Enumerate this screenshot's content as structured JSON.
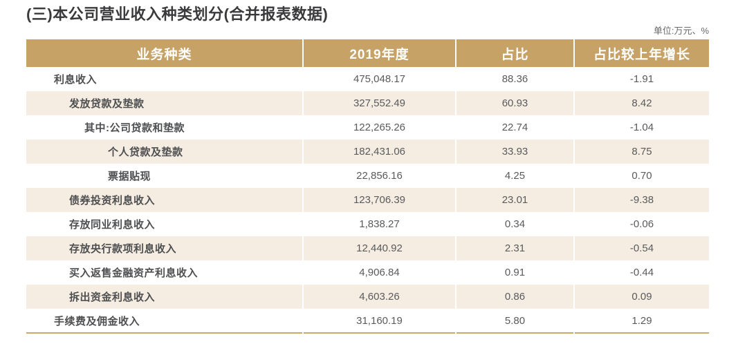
{
  "page": {
    "title": "(三)本公司营业收入种类划分(合并报表数据)",
    "unit_note": "单位:万元、%"
  },
  "colors": {
    "header_bg": "#c7a266",
    "header_text": "#ffffff",
    "row_alt_bg": "#f5ede2",
    "body_text": "#595a5c",
    "bottom_border": "#cda864"
  },
  "table": {
    "columns": [
      {
        "label": "业务种类"
      },
      {
        "label": "2019年度"
      },
      {
        "label": "占比"
      },
      {
        "label": "占比较上年增长"
      }
    ],
    "rows": [
      {
        "label": "利息收入",
        "indent": 1,
        "value": "475,048.17",
        "share": "88.36",
        "change": "-1.91"
      },
      {
        "label": "发放贷款及垫款",
        "indent": 2,
        "value": "327,552.49",
        "share": "60.93",
        "change": "8.42"
      },
      {
        "label": "其中:公司贷款和垫款",
        "indent": 3,
        "value": "122,265.26",
        "share": "22.74",
        "change": "-1.04"
      },
      {
        "label": "个人贷款及垫款",
        "indent": 4,
        "value": "182,431.06",
        "share": "33.93",
        "change": "8.75"
      },
      {
        "label": "票据贴现",
        "indent": 4,
        "value": "22,856.16",
        "share": "4.25",
        "change": "0.70"
      },
      {
        "label": "债券投资利息收入",
        "indent": 2,
        "value": "123,706.39",
        "share": "23.01",
        "change": "-9.38"
      },
      {
        "label": "存放同业利息收入",
        "indent": 2,
        "value": "1,838.27",
        "share": "0.34",
        "change": "-0.06"
      },
      {
        "label": "存放央行款项利息收入",
        "indent": 2,
        "value": "12,440.92",
        "share": "2.31",
        "change": "-0.54"
      },
      {
        "label": "买入返售金融资产利息收入",
        "indent": 2,
        "value": "4,906.84",
        "share": "0.91",
        "change": "-0.44"
      },
      {
        "label": "拆出资金利息收入",
        "indent": 2,
        "value": "4,603.26",
        "share": "0.86",
        "change": "0.09"
      },
      {
        "label": "手续费及佣金收入",
        "indent": 1,
        "value": "31,160.19",
        "share": "5.80",
        "change": "1.29"
      }
    ]
  }
}
